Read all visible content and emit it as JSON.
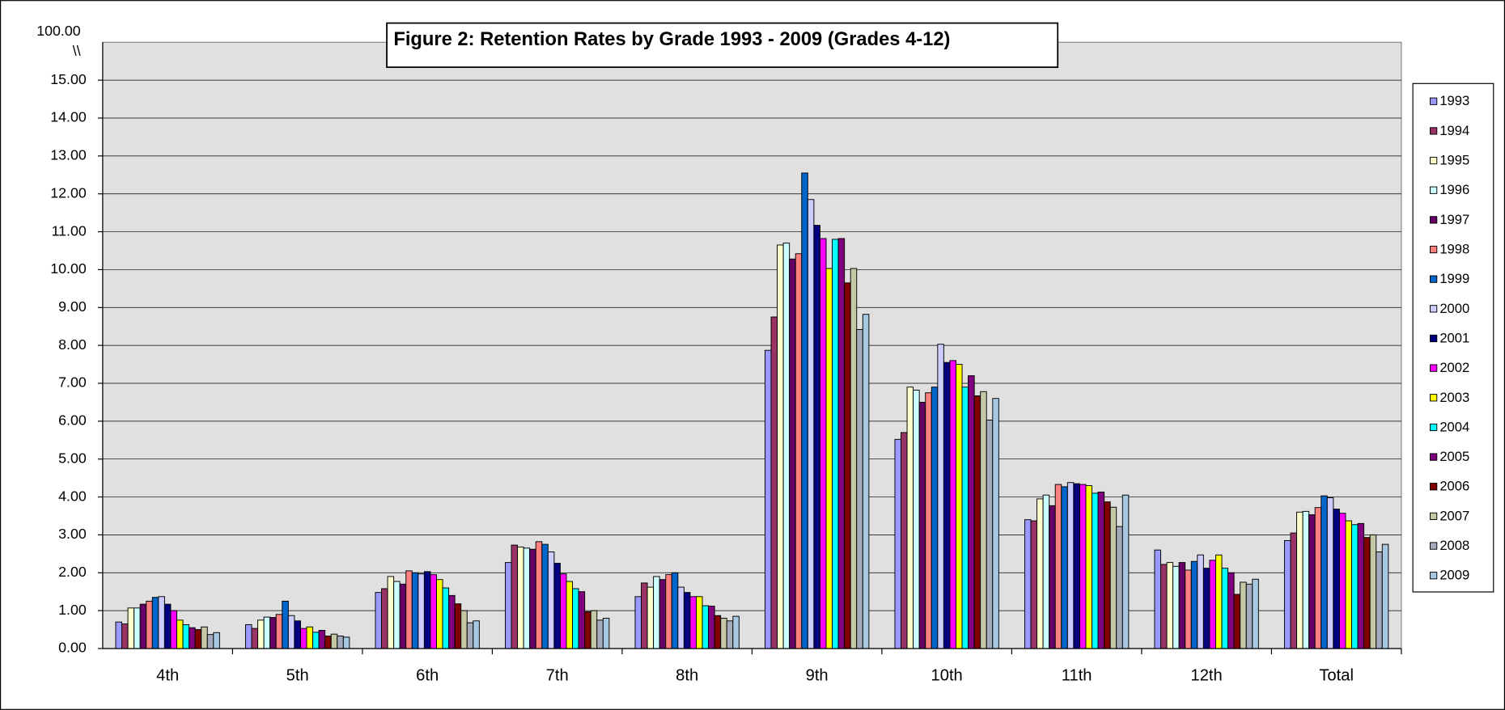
{
  "chart_data": {
    "type": "bar",
    "title": "Figure 2:  Retention Rates by Grade 1993 - 2009 (Grades 4-12)",
    "axis_break": {
      "label": "100.00",
      "mark": "\\\\"
    },
    "categories": [
      "4th",
      "5th",
      "6th",
      "7th",
      "8th",
      "9th",
      "10th",
      "11th",
      "12th",
      "Total"
    ],
    "series": [
      {
        "name": "1993",
        "color": "#9999ff",
        "values": [
          0.7,
          0.63,
          1.48,
          2.27,
          1.37,
          7.87,
          5.52,
          3.4,
          2.6,
          2.85
        ]
      },
      {
        "name": "1994",
        "color": "#993366",
        "values": [
          0.65,
          0.53,
          1.58,
          2.73,
          1.73,
          8.75,
          5.7,
          3.37,
          2.22,
          3.05
        ]
      },
      {
        "name": "1995",
        "color": "#ffffcc",
        "values": [
          1.07,
          0.75,
          1.9,
          2.68,
          1.62,
          10.65,
          6.9,
          3.95,
          2.27,
          3.6
        ]
      },
      {
        "name": "1996",
        "color": "#ccffff",
        "values": [
          1.07,
          0.83,
          1.77,
          2.65,
          1.9,
          10.7,
          6.82,
          4.05,
          2.17,
          3.62
        ]
      },
      {
        "name": "1997",
        "color": "#660066",
        "values": [
          1.17,
          0.82,
          1.7,
          2.62,
          1.82,
          10.28,
          6.5,
          3.77,
          2.27,
          3.53
        ]
      },
      {
        "name": "1998",
        "color": "#ff8080",
        "values": [
          1.25,
          0.9,
          2.05,
          2.82,
          1.95,
          10.42,
          6.75,
          4.33,
          2.07,
          3.72
        ]
      },
      {
        "name": "1999",
        "color": "#0066cc",
        "values": [
          1.35,
          1.25,
          2.0,
          2.75,
          2.0,
          12.55,
          6.9,
          4.27,
          2.3,
          4.03
        ]
      },
      {
        "name": "2000",
        "color": "#ccccff",
        "values": [
          1.37,
          0.87,
          1.97,
          2.55,
          1.62,
          11.85,
          8.03,
          4.38,
          2.47,
          3.98
        ]
      },
      {
        "name": "2001",
        "color": "#000080",
        "values": [
          1.17,
          0.73,
          2.03,
          2.25,
          1.48,
          11.17,
          7.55,
          4.35,
          2.12,
          3.68
        ]
      },
      {
        "name": "2002",
        "color": "#ff00ff",
        "values": [
          1.0,
          0.53,
          1.95,
          1.97,
          1.37,
          10.82,
          7.6,
          4.33,
          2.33,
          3.57
        ]
      },
      {
        "name": "2003",
        "color": "#ffff00",
        "values": [
          0.75,
          0.57,
          1.82,
          1.77,
          1.37,
          10.03,
          7.5,
          4.3,
          2.47,
          3.37
        ]
      },
      {
        "name": "2004",
        "color": "#00ffff",
        "values": [
          0.63,
          0.43,
          1.6,
          1.58,
          1.13,
          10.8,
          6.9,
          4.1,
          2.12,
          3.27
        ]
      },
      {
        "name": "2005",
        "color": "#800080",
        "values": [
          0.55,
          0.48,
          1.4,
          1.5,
          1.12,
          10.82,
          7.2,
          4.13,
          2.0,
          3.3
        ]
      },
      {
        "name": "2006",
        "color": "#800000",
        "values": [
          0.5,
          0.33,
          1.18,
          0.97,
          0.87,
          9.65,
          6.67,
          3.87,
          1.43,
          2.93
        ]
      },
      {
        "name": "2007",
        "color": "#c4c8a4",
        "values": [
          0.57,
          0.38,
          1.0,
          1.0,
          0.8,
          10.03,
          6.78,
          3.73,
          1.75,
          3.0
        ]
      },
      {
        "name": "2008",
        "color": "#a4abbc",
        "values": [
          0.37,
          0.33,
          0.68,
          0.75,
          0.73,
          8.42,
          6.03,
          3.22,
          1.7,
          2.55
        ]
      },
      {
        "name": "2009",
        "color": "#a6c8e0",
        "values": [
          0.42,
          0.3,
          0.73,
          0.8,
          0.85,
          8.82,
          6.6,
          4.05,
          1.83,
          2.75
        ]
      }
    ],
    "ylim": [
      0,
      16
    ],
    "yticks": [
      {
        "value": 0,
        "label": "0.00"
      },
      {
        "value": 1,
        "label": "1.00"
      },
      {
        "value": 2,
        "label": "2.00"
      },
      {
        "value": 3,
        "label": "3.00"
      },
      {
        "value": 4,
        "label": "4.00"
      },
      {
        "value": 5,
        "label": "5.00"
      },
      {
        "value": 6,
        "label": "6.00"
      },
      {
        "value": 7,
        "label": "7.00"
      },
      {
        "value": 8,
        "label": "8.00"
      },
      {
        "value": 9,
        "label": "9.00"
      },
      {
        "value": 10,
        "label": "10.00"
      },
      {
        "value": 11,
        "label": "11.00"
      },
      {
        "value": 12,
        "label": "12.00"
      },
      {
        "value": 13,
        "label": "13.00"
      },
      {
        "value": 14,
        "label": "14.00"
      },
      {
        "value": 15,
        "label": "15.00"
      }
    ],
    "grid": true,
    "legend": "right"
  }
}
